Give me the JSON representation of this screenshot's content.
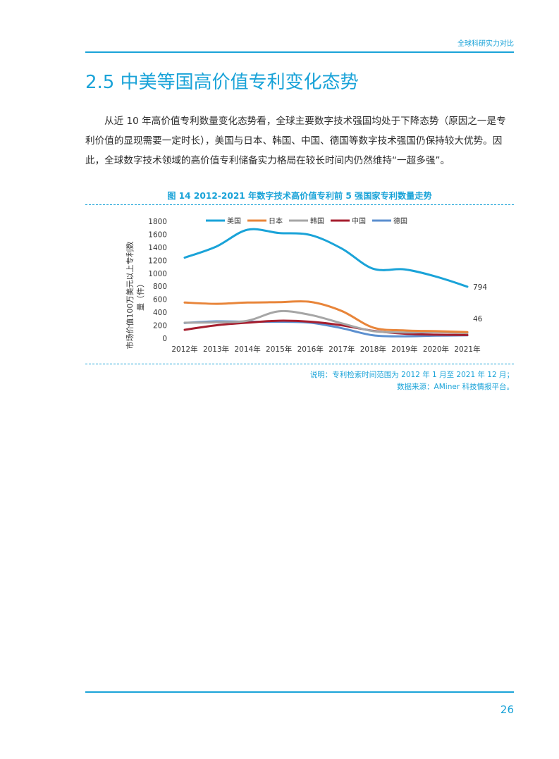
{
  "header": {
    "title": "全球科研实力对比"
  },
  "section": {
    "title": "2.5 中美等国高价值专利变化态势"
  },
  "body": {
    "paragraph": "从近 10 年高价值专利数量变化态势看，全球主要数字技术强国均处于下降态势（原因之一是专利价值的显现需要一定时长），美国与日本、韩国、中国、德国等数字技术强国仍保持较大优势。因此，全球数字技术领域的高价值专利储备实力格局在较长时间内仍然维持“一超多强”。"
  },
  "figure": {
    "caption": "图 14 2012-2021 年数字技术高价值专利前 5 强国家专利数量走势",
    "note_line1": "说明：专利检索时间范围为 2012 年 1 月至 2021 年 12 月；",
    "note_line2": "数据来源：AMiner 科技情报平台。"
  },
  "chart_data": {
    "type": "line",
    "title": "",
    "xlabel": "",
    "ylabel_line1": "市场价值100万美元以上专利数",
    "ylabel_line2": "量（件）",
    "categories": [
      "2012年",
      "2013年",
      "2014年",
      "2015年",
      "2016年",
      "2017年",
      "2018年",
      "2019年",
      "2020年",
      "2021年"
    ],
    "ylim": [
      0,
      1800
    ],
    "yticks": [
      0,
      200,
      400,
      600,
      800,
      1000,
      1200,
      1400,
      1600,
      1800
    ],
    "grid": false,
    "legend_position": "top",
    "series": [
      {
        "name": "美国",
        "color": "#1aa3d8",
        "values": [
          1240,
          1410,
          1670,
          1620,
          1590,
          1380,
          1070,
          1060,
          950,
          794
        ]
      },
      {
        "name": "日本",
        "color": "#e8853a",
        "values": [
          550,
          530,
          550,
          555,
          560,
          420,
          165,
          120,
          110,
          95
        ]
      },
      {
        "name": "韩国",
        "color": "#a6a6a6",
        "values": [
          240,
          245,
          270,
          415,
          360,
          230,
          110,
          90,
          95,
          80
        ]
      },
      {
        "name": "中国",
        "color": "#a61e2e",
        "values": [
          130,
          200,
          240,
          270,
          255,
          200,
          115,
          70,
          55,
          50
        ]
      },
      {
        "name": "德国",
        "color": "#5b8fcf",
        "values": [
          235,
          260,
          255,
          255,
          240,
          155,
          45,
          30,
          40,
          46
        ]
      }
    ],
    "annotations": [
      {
        "series": "美国",
        "label": "794"
      },
      {
        "series": "德国",
        "label": "46"
      }
    ]
  },
  "footer": {
    "page_number": "26"
  }
}
